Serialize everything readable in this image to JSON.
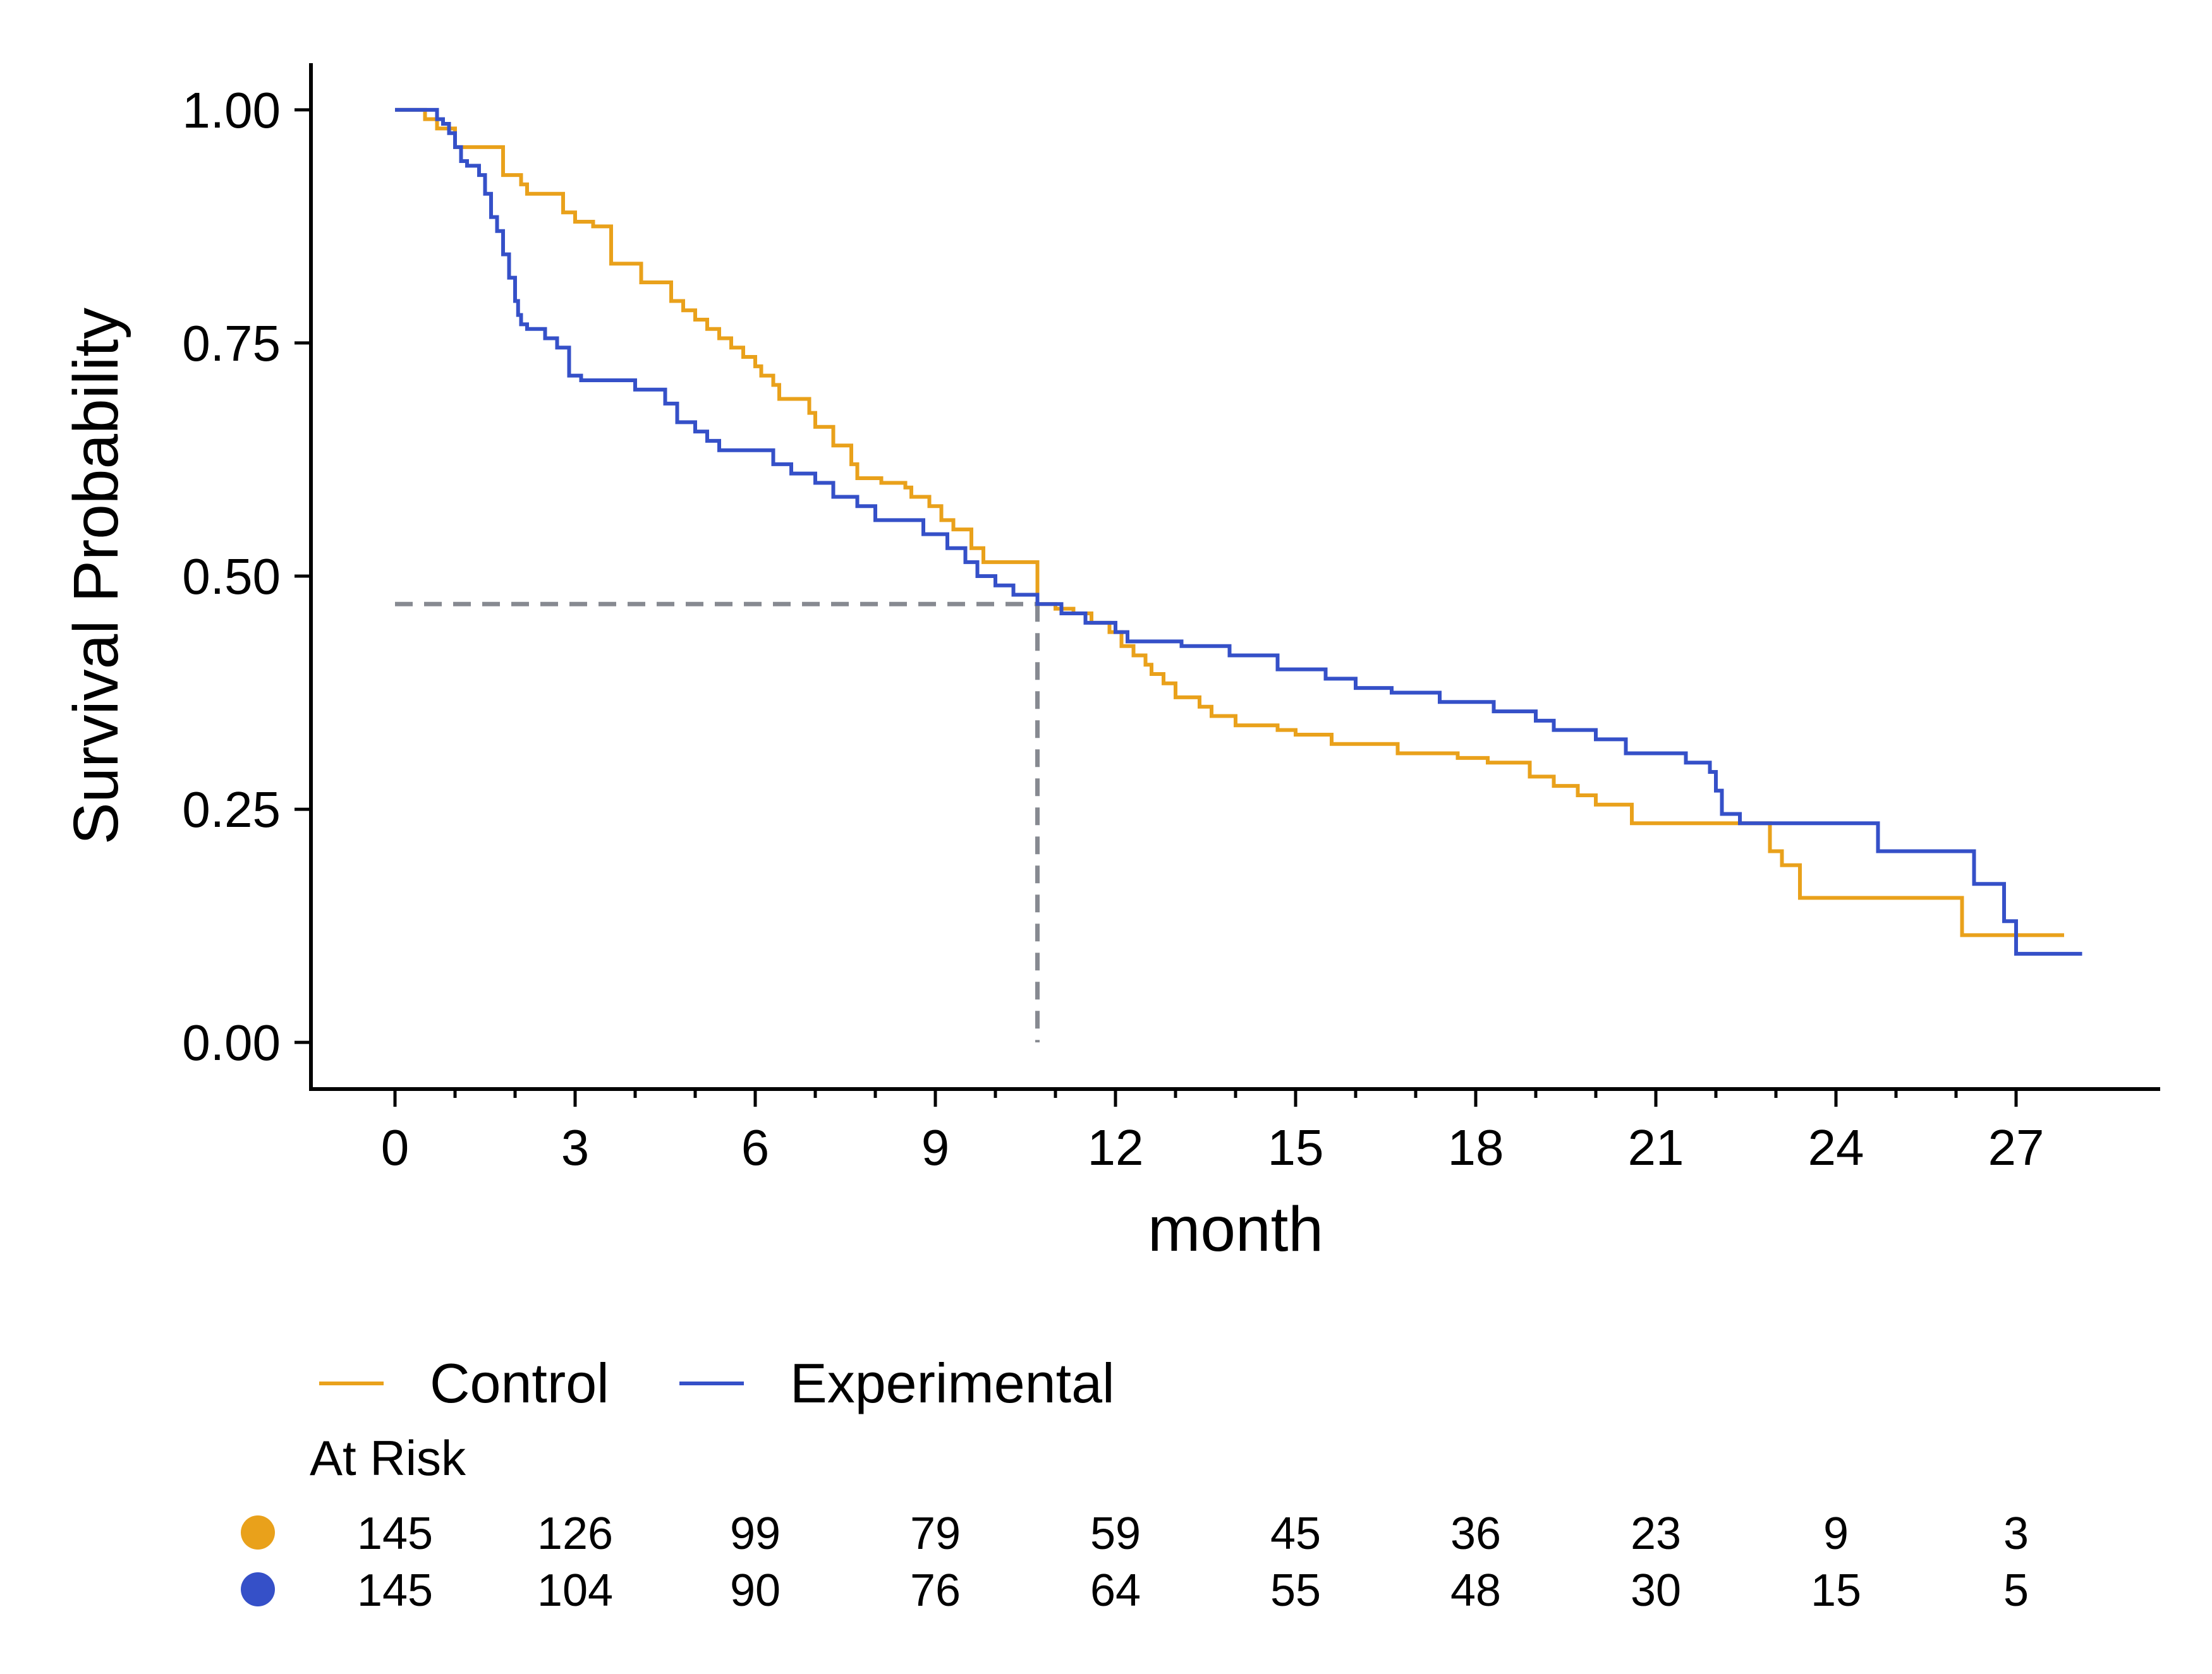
{
  "chart_data": {
    "type": "line",
    "title": "",
    "xlabel": "month",
    "ylabel": "Survival Probability",
    "xlim": [
      -1.4,
      29.4
    ],
    "ylim": [
      -0.05,
      1.05
    ],
    "xticks": [
      0,
      3,
      6,
      9,
      12,
      15,
      18,
      21,
      24,
      27
    ],
    "xticks_minor": [
      1,
      2,
      4,
      5,
      7,
      8,
      10,
      11,
      13,
      14,
      16,
      17,
      19,
      20,
      22,
      23,
      25,
      26
    ],
    "yticks": [
      0,
      0.25,
      0.5,
      0.75,
      1
    ],
    "ytick_labels": [
      "0.00",
      "0.25",
      "0.50",
      "0.75",
      "1.00"
    ],
    "xtick_labels": [
      "0",
      "3",
      "6",
      "9",
      "12",
      "15",
      "18",
      "21",
      "24",
      "27"
    ],
    "grid": false,
    "legend_position": "bottom-left",
    "median_reference": {
      "x": 10.7,
      "y": 0.47,
      "color": "#878a91"
    },
    "series": [
      {
        "name": "Control",
        "color": "#e9a11b",
        "x": [
          0,
          0.5,
          0.7,
          1.0,
          1.2,
          1.8,
          2.1,
          2.2,
          2.4,
          2.8,
          3.0,
          3.3,
          3.6,
          4.1,
          4.3,
          4.6,
          4.8,
          5.0,
          5.2,
          5.4,
          5.6,
          5.8,
          6.0,
          6.1,
          6.3,
          6.4,
          6.9,
          7.0,
          7.3,
          7.6,
          7.7,
          8.1,
          8.5,
          8.6,
          8.9,
          9.1,
          9.3,
          9.6,
          9.8,
          10.7,
          11.0,
          11.3,
          11.6,
          11.9,
          12.1,
          12.3,
          12.5,
          12.6,
          12.8,
          13.0,
          13.4,
          13.6,
          14.0,
          14.7,
          15.0,
          15.6,
          16.7,
          17.7,
          18.2,
          18.9,
          19.3,
          19.7,
          20.0,
          20.6,
          21.4,
          22.3,
          22.8,
          22.9,
          23.1,
          23.4,
          23.8,
          25.4,
          26.1,
          26.3,
          27.8
        ],
        "y": [
          1.0,
          0.99,
          0.98,
          0.96,
          0.96,
          0.93,
          0.92,
          0.91,
          0.91,
          0.89,
          0.88,
          0.875,
          0.835,
          0.815,
          0.815,
          0.795,
          0.785,
          0.775,
          0.765,
          0.755,
          0.745,
          0.735,
          0.725,
          0.715,
          0.705,
          0.69,
          0.675,
          0.66,
          0.64,
          0.62,
          0.605,
          0.6,
          0.595,
          0.585,
          0.575,
          0.56,
          0.55,
          0.53,
          0.515,
          0.47,
          0.465,
          0.46,
          0.45,
          0.44,
          0.425,
          0.415,
          0.405,
          0.395,
          0.385,
          0.37,
          0.36,
          0.35,
          0.34,
          0.335,
          0.33,
          0.32,
          0.31,
          0.305,
          0.3,
          0.285,
          0.275,
          0.265,
          0.255,
          0.235,
          0.235,
          0.235,
          0.235,
          0.205,
          0.19,
          0.155,
          0.155,
          0.155,
          0.115,
          0.115,
          0.115
        ]
      },
      {
        "name": "Experimental",
        "color": "#3550c8",
        "x": [
          0,
          0.7,
          0.8,
          0.9,
          1.0,
          1.1,
          1.2,
          1.4,
          1.5,
          1.6,
          1.7,
          1.8,
          1.9,
          2.0,
          2.05,
          2.1,
          2.2,
          2.5,
          2.7,
          2.9,
          3.1,
          3.4,
          3.7,
          4.0,
          4.5,
          4.7,
          5.0,
          5.2,
          5.4,
          5.7,
          6.3,
          6.6,
          7.0,
          7.3,
          7.7,
          8.0,
          8.8,
          9.2,
          9.5,
          9.7,
          10.0,
          10.3,
          10.7,
          11.1,
          11.5,
          12.0,
          12.2,
          13.1,
          13.9,
          14.7,
          15.5,
          16.0,
          16.6,
          17.4,
          18.3,
          19.0,
          19.3,
          20.0,
          20.5,
          21.5,
          21.9,
          22.0,
          22.1,
          22.4,
          22.8,
          23.5,
          24.7,
          26.3,
          26.8,
          27.0,
          28.1
        ],
        "y": [
          1.0,
          0.99,
          0.985,
          0.975,
          0.96,
          0.945,
          0.94,
          0.93,
          0.91,
          0.885,
          0.87,
          0.845,
          0.82,
          0.795,
          0.78,
          0.77,
          0.765,
          0.755,
          0.745,
          0.715,
          0.71,
          0.71,
          0.71,
          0.7,
          0.685,
          0.665,
          0.655,
          0.645,
          0.635,
          0.635,
          0.62,
          0.61,
          0.6,
          0.585,
          0.575,
          0.56,
          0.545,
          0.53,
          0.515,
          0.5,
          0.49,
          0.48,
          0.47,
          0.46,
          0.45,
          0.44,
          0.43,
          0.425,
          0.415,
          0.4,
          0.39,
          0.38,
          0.375,
          0.365,
          0.355,
          0.345,
          0.335,
          0.325,
          0.31,
          0.3,
          0.29,
          0.27,
          0.245,
          0.235,
          0.235,
          0.235,
          0.205,
          0.17,
          0.13,
          0.095,
          0.095
        ]
      }
    ],
    "risk_table": {
      "title": "At Risk",
      "times": [
        0,
        3,
        6,
        9,
        12,
        15,
        18,
        21,
        24,
        27
      ],
      "rows": [
        {
          "name": "Control",
          "color": "#e9a11b",
          "values": [
            145,
            126,
            99,
            79,
            59,
            45,
            36,
            23,
            9,
            3
          ]
        },
        {
          "name": "Experimental",
          "color": "#3550c8",
          "values": [
            145,
            104,
            90,
            76,
            64,
            55,
            48,
            30,
            15,
            5
          ]
        }
      ]
    }
  }
}
